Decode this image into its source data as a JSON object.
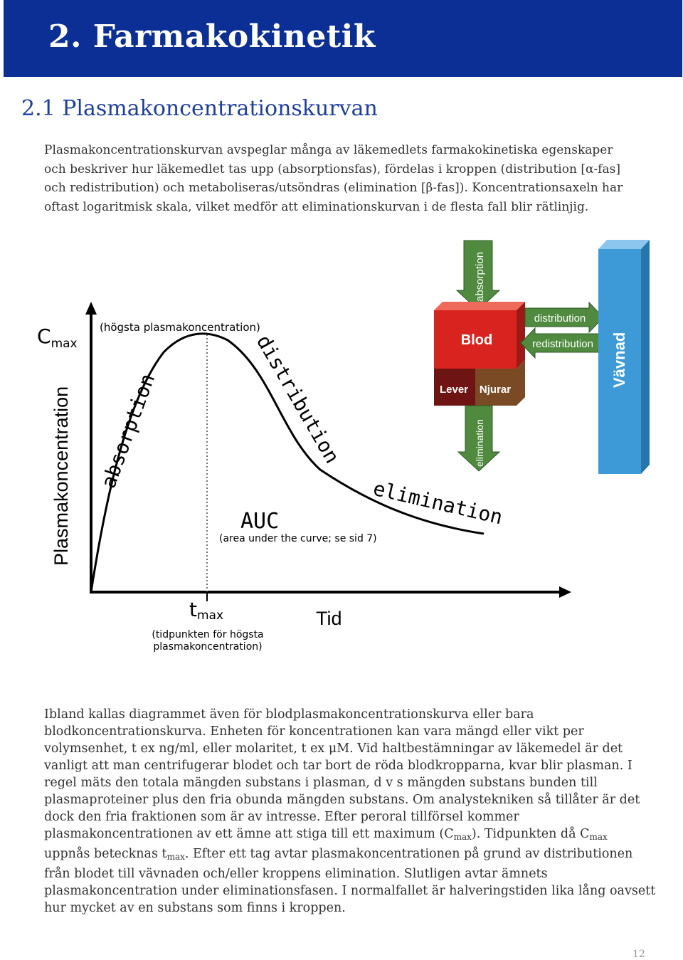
{
  "header": {
    "title": "2. Farmakokinetik"
  },
  "section": {
    "title": "2.1 Plasmakoncentrationskurvan"
  },
  "intro": {
    "l1": "Plasmakoncentrationskurvan avspeglar många av läkemedlets farmakokinetiska egenskaper",
    "l2": "och beskriver hur läkemedlet tas upp (absorptionsfas), fördelas i kroppen (distribution [α-fas]",
    "l3": "och redistribution) och metaboliseras/utsöndras (elimination [β-fas]). Koncentrationsaxeln har",
    "l4": "oftast logaritmisk skala, vilket medför att eliminationskurvan i de flesta fall blir rätlinjig."
  },
  "diagram": {
    "cmax_c": "C",
    "cmax_sub": "max",
    "cmax_note": "(högsta plasmakoncentration)",
    "y_axis_label": "Plasmakoncentration",
    "x_axis_label": "Tid",
    "tmax_t": "t",
    "tmax_sub": "max",
    "tmax_note_l1": "(tidpunkten för högsta",
    "tmax_note_l2": "plasmakoncentration)",
    "phase_absorption": "absorption",
    "phase_distribution": "distribution",
    "phase_elimination": "elimination",
    "auc": "AUC",
    "auc_note": "(area under the curve; se sid 7)",
    "box_blod": "Blod",
    "box_lever": "Lever",
    "box_njurar": "Njurar",
    "box_vavnad": "Vävnad",
    "arrow_absorption": "absorption",
    "arrow_elimination": "elimination",
    "arrow_distribution": "distribution",
    "arrow_redistribution": "redistribution",
    "colors": {
      "blod": "#d8231f",
      "lever": "#6e1412",
      "njurar": "#7a4a25",
      "vavnad": "#3d9ad6",
      "arrow": "#4f8a3f"
    }
  },
  "body": {
    "l1": "Ibland kallas diagrammet även för blodplasmakoncentrationskurva eller bara",
    "l2": "blodkoncentrationskurva. Enheten för koncentrationen kan vara mängd eller vikt per",
    "l3": "volymsenhet, t ex ng/ml, eller molaritet, t ex μM. Vid haltbestämningar av läkemedel är det",
    "l4": "vanligt att man centrifugerar blodet och tar bort de röda blodkropparna, kvar blir plasman. I",
    "l5": "regel mäts den totala mängden substans i plasman, d v s mängden substans bunden till",
    "l6": "plasmaproteiner plus den fria obunda mängden substans. Om analystekniken så tillåter är det",
    "l7": "dock den fria fraktionen som är av intresse. Efter peroral tillförsel kommer",
    "l8a": "plasmakoncentrationen av ett ämne att stiga till ett maximum (C",
    "l8b": "max",
    "l8c": "). Tidpunkten då C",
    "l8d": "max",
    "l9a": "uppnås betecknas t",
    "l9b": "max",
    "l9c": ". Efter ett tag avtar plasmakoncentrationen på grund av distributionen",
    "l10": "från blodet till vävnaden och/eller kroppens elimination. Slutligen avtar ämnets",
    "l11": "plasmakoncentration under eliminationsfasen. I normalfallet är halveringstiden lika lång oavsett",
    "l12": "hur mycket av en substans som finns i kroppen."
  },
  "page_number": "12"
}
